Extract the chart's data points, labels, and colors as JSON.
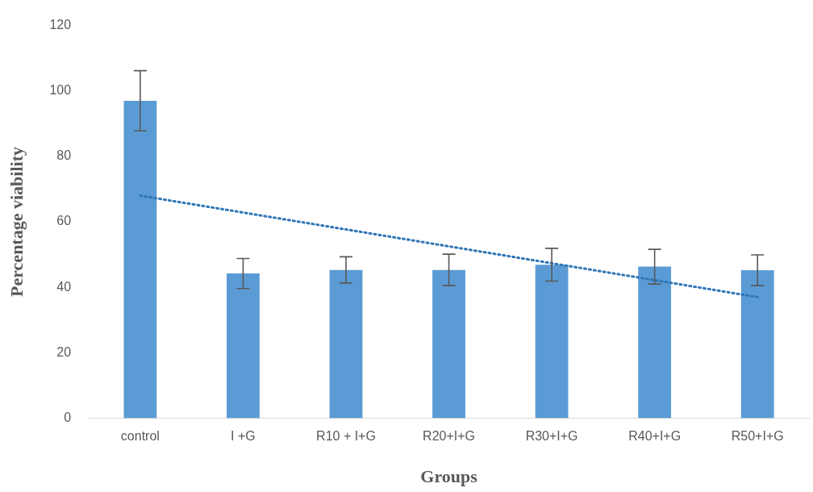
{
  "chart_data": {
    "type": "bar",
    "xlabel": "Groups",
    "ylabel": "Percentage viability",
    "categories": [
      "control",
      "I +G",
      "R10 + I+G",
      "R20+I+G",
      "R30+I+G",
      "R40+I+G",
      "R50+I+G"
    ],
    "series": [
      {
        "color": "#5b9bd5",
        "values": [
          97,
          44.2,
          45.3,
          45.3,
          46.9,
          46.3,
          45.2
        ],
        "errors": [
          9.2,
          4.6,
          4,
          4.8,
          5,
          5.3,
          4.7
        ]
      },
      {
        "type": "line",
        "color": "#2e75b6",
        "line_style": "dotted",
        "x": [
          "control",
          "R50+I+G"
        ],
        "values": [
          68,
          37
        ]
      }
    ],
    "ylim": [
      0,
      120
    ],
    "yticks": [
      0,
      20,
      40,
      60,
      80,
      100,
      120
    ],
    "grid": false,
    "legend": false
  }
}
